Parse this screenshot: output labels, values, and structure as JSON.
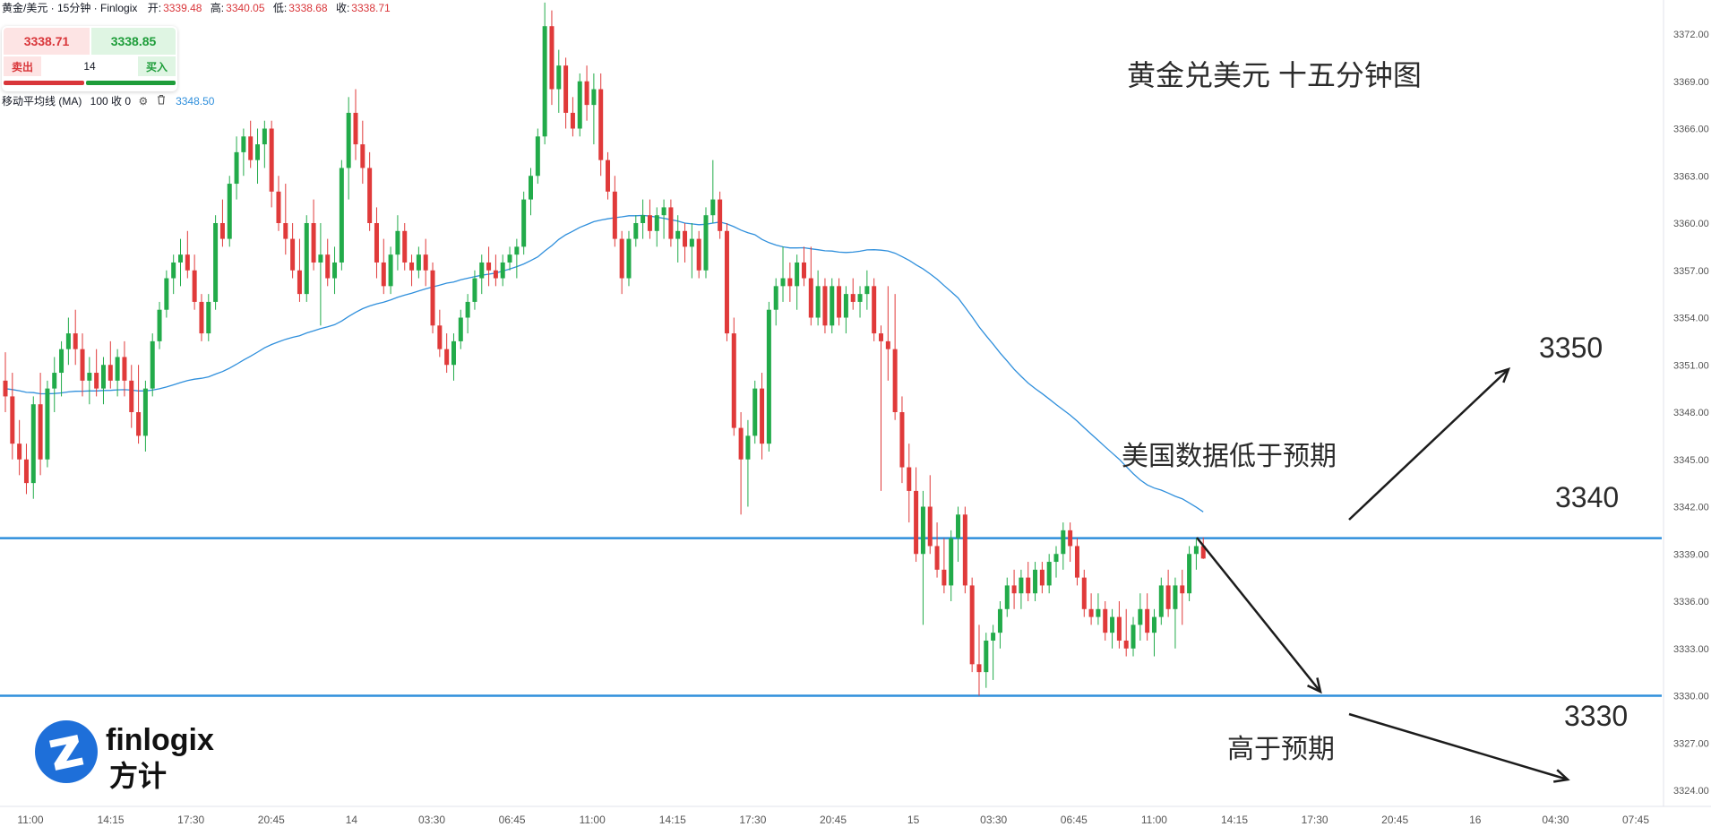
{
  "header": {
    "symbol": "黄金/美元 · 15分钟 · Finlogix",
    "open_label": "开:",
    "open": "3339.48",
    "high_label": "高:",
    "high": "3340.05",
    "low_label": "低:",
    "low": "3338.68",
    "close_label": "收:",
    "close": "3338.71"
  },
  "trade_panel": {
    "sell_price": "3338.71",
    "buy_price": "3338.85",
    "sell_label": "卖出",
    "buy_label": "买入",
    "quantity": "14"
  },
  "indicator": {
    "name": "移动平均线 (MA)",
    "params": "100 收 0",
    "value": "3348.50",
    "settings_icon": "gear-icon",
    "delete_icon": "trash-icon"
  },
  "annotations": {
    "title": "黄金兑美元 十五分钟图",
    "scenario_low": "美国数据低于预期",
    "scenario_high": "高于预期",
    "target_up": "3350",
    "level_upper": "3340",
    "level_lower": "3330"
  },
  "logo": {
    "brand": "finlogix",
    "brand_cn": "方计"
  },
  "colors": {
    "up": "#22ab4a",
    "down": "#e03a3a",
    "ma": "#2f8fdc",
    "level_line": "#2f8fdc",
    "arrow": "#1c1c1c",
    "logo_blue": "#1e6fd9"
  },
  "chart_data": {
    "type": "candlestick",
    "title": "黄金兑美元 十五分钟图",
    "ylim": [
      3322.5,
      3374.0
    ],
    "y_ticks": [
      "3372.00",
      "3369.00",
      "3366.00",
      "3363.00",
      "3360.00",
      "3357.00",
      "3354.00",
      "3351.00",
      "3348.00",
      "3345.00",
      "3342.00",
      "3339.00",
      "3336.00",
      "3333.00",
      "3330.00",
      "3327.00",
      "3324.00"
    ],
    "x_ticks": [
      "11:00",
      "14:15",
      "17:30",
      "20:45",
      "14",
      "03:30",
      "06:45",
      "11:00",
      "14:15",
      "17:30",
      "20:45",
      "15",
      "03:30",
      "06:45",
      "11:00",
      "14:15",
      "17:30",
      "20:45",
      "16",
      "04:30",
      "07:45"
    ],
    "horizontal_levels": [
      3340.0,
      3330.0
    ],
    "ma_period": 100,
    "ohlc_description": "open, high, low, close per 15-minute bar, approximated from the image",
    "ohlc": [
      [
        3350.0,
        3351.8,
        3348.0,
        3349.0
      ],
      [
        3349.0,
        3350.5,
        3345.0,
        3346.0
      ],
      [
        3346.0,
        3347.5,
        3344.0,
        3345.0
      ],
      [
        3345.0,
        3346.0,
        3342.8,
        3343.5
      ],
      [
        3343.5,
        3349.0,
        3342.5,
        3348.5
      ],
      [
        3348.5,
        3350.5,
        3344.0,
        3345.0
      ],
      [
        3345.0,
        3350.0,
        3344.5,
        3349.5
      ],
      [
        3349.5,
        3351.5,
        3348.0,
        3350.5
      ],
      [
        3350.5,
        3352.5,
        3349.0,
        3352.0
      ],
      [
        3352.0,
        3354.0,
        3351.0,
        3353.0
      ],
      [
        3353.0,
        3354.5,
        3351.0,
        3352.0
      ],
      [
        3352.0,
        3353.0,
        3349.0,
        3350.0
      ],
      [
        3350.0,
        3351.5,
        3348.5,
        3350.5
      ],
      [
        3350.5,
        3352.0,
        3349.0,
        3349.5
      ],
      [
        3349.5,
        3351.5,
        3348.5,
        3351.0
      ],
      [
        3351.0,
        3352.5,
        3349.5,
        3350.0
      ],
      [
        3350.0,
        3352.0,
        3349.0,
        3351.5
      ],
      [
        3351.5,
        3352.5,
        3349.0,
        3350.0
      ],
      [
        3350.0,
        3351.0,
        3347.0,
        3348.0
      ],
      [
        3348.0,
        3351.0,
        3346.0,
        3346.5
      ],
      [
        3346.5,
        3350.0,
        3345.5,
        3349.5
      ],
      [
        3349.5,
        3353.0,
        3349.0,
        3352.5
      ],
      [
        3352.5,
        3355.0,
        3352.0,
        3354.5
      ],
      [
        3354.5,
        3357.0,
        3354.0,
        3356.5
      ],
      [
        3356.5,
        3358.0,
        3355.5,
        3357.5
      ],
      [
        3357.5,
        3359.0,
        3356.0,
        3358.0
      ],
      [
        3358.0,
        3359.5,
        3356.5,
        3357.0
      ],
      [
        3357.0,
        3358.0,
        3354.5,
        3355.0
      ],
      [
        3355.0,
        3355.5,
        3352.5,
        3353.0
      ],
      [
        3353.0,
        3355.5,
        3352.5,
        3355.0
      ],
      [
        3355.0,
        3360.5,
        3354.5,
        3360.0
      ],
      [
        3360.0,
        3361.5,
        3358.5,
        3359.0
      ],
      [
        3359.0,
        3363.0,
        3358.5,
        3362.5
      ],
      [
        3362.5,
        3365.5,
        3361.5,
        3364.5
      ],
      [
        3364.5,
        3366.0,
        3363.0,
        3365.5
      ],
      [
        3365.5,
        3366.5,
        3363.5,
        3364.0
      ],
      [
        3364.0,
        3366.0,
        3362.5,
        3365.0
      ],
      [
        3365.0,
        3366.5,
        3363.5,
        3366.0
      ],
      [
        3366.0,
        3366.5,
        3361.0,
        3362.0
      ],
      [
        3362.0,
        3363.0,
        3359.5,
        3360.0
      ],
      [
        3360.0,
        3362.5,
        3358.0,
        3359.0
      ],
      [
        3359.0,
        3360.0,
        3356.5,
        3357.0
      ],
      [
        3357.0,
        3359.0,
        3355.0,
        3355.5
      ],
      [
        3355.5,
        3360.5,
        3355.0,
        3360.0
      ],
      [
        3360.0,
        3361.5,
        3357.0,
        3357.5
      ],
      [
        3357.5,
        3360.0,
        3353.5,
        3358.0
      ],
      [
        3358.0,
        3359.0,
        3356.0,
        3356.5
      ],
      [
        3356.5,
        3358.5,
        3355.5,
        3357.5
      ],
      [
        3357.5,
        3364.0,
        3357.0,
        3363.5
      ],
      [
        3363.5,
        3368.0,
        3361.5,
        3367.0
      ],
      [
        3367.0,
        3368.5,
        3364.0,
        3365.0
      ],
      [
        3365.0,
        3366.5,
        3362.5,
        3363.5
      ],
      [
        3363.5,
        3364.5,
        3359.5,
        3360.0
      ],
      [
        3360.0,
        3361.0,
        3356.5,
        3357.5
      ],
      [
        3357.5,
        3359.0,
        3355.5,
        3356.0
      ],
      [
        3356.0,
        3358.5,
        3355.5,
        3358.0
      ],
      [
        3358.0,
        3360.5,
        3357.0,
        3359.5
      ],
      [
        3359.5,
        3360.0,
        3357.0,
        3357.5
      ],
      [
        3357.5,
        3358.0,
        3356.0,
        3357.0
      ],
      [
        3357.0,
        3358.5,
        3356.5,
        3358.0
      ],
      [
        3358.0,
        3359.0,
        3356.0,
        3357.0
      ],
      [
        3357.0,
        3357.5,
        3353.0,
        3353.5
      ],
      [
        3353.5,
        3354.5,
        3351.5,
        3352.0
      ],
      [
        3352.0,
        3353.0,
        3350.5,
        3351.0
      ],
      [
        3351.0,
        3353.0,
        3350.0,
        3352.5
      ],
      [
        3352.5,
        3354.5,
        3352.0,
        3354.0
      ],
      [
        3354.0,
        3355.5,
        3353.0,
        3355.0
      ],
      [
        3355.0,
        3357.0,
        3354.5,
        3356.5
      ],
      [
        3356.5,
        3358.0,
        3355.5,
        3357.5
      ],
      [
        3357.5,
        3358.5,
        3356.0,
        3357.0
      ],
      [
        3357.0,
        3358.0,
        3356.0,
        3356.5
      ],
      [
        3356.5,
        3358.0,
        3356.0,
        3357.5
      ],
      [
        3357.5,
        3358.5,
        3357.0,
        3358.0
      ],
      [
        3358.0,
        3359.0,
        3356.5,
        3358.5
      ],
      [
        3358.5,
        3362.0,
        3358.0,
        3361.5
      ],
      [
        3361.5,
        3363.5,
        3360.5,
        3363.0
      ],
      [
        3363.0,
        3366.0,
        3362.5,
        3365.5
      ],
      [
        3365.5,
        3374.0,
        3365.0,
        3372.5
      ],
      [
        3372.5,
        3373.5,
        3367.5,
        3368.5
      ],
      [
        3368.5,
        3371.0,
        3367.0,
        3370.0
      ],
      [
        3370.0,
        3370.5,
        3366.0,
        3367.0
      ],
      [
        3367.0,
        3368.0,
        3365.5,
        3366.0
      ],
      [
        3366.0,
        3369.5,
        3365.5,
        3369.0
      ],
      [
        3369.0,
        3370.0,
        3366.5,
        3367.5
      ],
      [
        3367.5,
        3369.5,
        3365.0,
        3368.5
      ],
      [
        3368.5,
        3369.5,
        3363.0,
        3364.0
      ],
      [
        3364.0,
        3364.5,
        3361.5,
        3362.0
      ],
      [
        3362.0,
        3363.0,
        3358.5,
        3359.0
      ],
      [
        3359.0,
        3359.5,
        3355.5,
        3356.5
      ],
      [
        3356.5,
        3359.5,
        3356.0,
        3359.0
      ],
      [
        3359.0,
        3360.5,
        3358.5,
        3360.0
      ],
      [
        3360.0,
        3361.5,
        3359.0,
        3360.5
      ],
      [
        3360.5,
        3361.5,
        3359.0,
        3359.5
      ],
      [
        3359.5,
        3361.0,
        3358.5,
        3360.5
      ],
      [
        3360.5,
        3361.5,
        3359.0,
        3361.0
      ],
      [
        3361.0,
        3361.5,
        3358.5,
        3359.0
      ],
      [
        3359.0,
        3360.5,
        3357.5,
        3359.5
      ],
      [
        3359.5,
        3360.0,
        3357.5,
        3358.5
      ],
      [
        3358.5,
        3360.0,
        3356.5,
        3359.0
      ],
      [
        3359.0,
        3359.5,
        3356.5,
        3357.0
      ],
      [
        3357.0,
        3361.0,
        3356.5,
        3360.5
      ],
      [
        3360.5,
        3364.0,
        3360.0,
        3361.5
      ],
      [
        3361.5,
        3362.0,
        3359.0,
        3359.5
      ],
      [
        3359.5,
        3360.0,
        3352.5,
        3353.0
      ],
      [
        3353.0,
        3354.0,
        3346.5,
        3347.0
      ],
      [
        3347.0,
        3348.0,
        3341.5,
        3345.0
      ],
      [
        3345.0,
        3347.5,
        3342.0,
        3346.5
      ],
      [
        3346.5,
        3350.0,
        3346.0,
        3349.5
      ],
      [
        3349.5,
        3350.5,
        3345.0,
        3346.0
      ],
      [
        3346.0,
        3355.0,
        3345.5,
        3354.5
      ],
      [
        3354.5,
        3356.5,
        3353.5,
        3356.0
      ],
      [
        3356.0,
        3358.5,
        3355.0,
        3356.5
      ],
      [
        3356.5,
        3357.5,
        3355.0,
        3356.0
      ],
      [
        3356.0,
        3358.0,
        3354.5,
        3357.5
      ],
      [
        3357.5,
        3358.5,
        3356.0,
        3356.5
      ],
      [
        3356.5,
        3358.5,
        3353.5,
        3354.0
      ],
      [
        3354.0,
        3357.0,
        3353.5,
        3356.0
      ],
      [
        3356.0,
        3356.5,
        3353.0,
        3353.5
      ],
      [
        3353.5,
        3356.5,
        3353.0,
        3356.0
      ],
      [
        3356.0,
        3356.5,
        3353.5,
        3354.0
      ],
      [
        3354.0,
        3356.0,
        3353.0,
        3355.5
      ],
      [
        3355.5,
        3356.5,
        3354.5,
        3355.0
      ],
      [
        3355.0,
        3356.0,
        3354.0,
        3355.5
      ],
      [
        3355.5,
        3357.0,
        3354.5,
        3356.0
      ],
      [
        3356.0,
        3356.5,
        3352.5,
        3353.0
      ],
      [
        3353.0,
        3353.5,
        3343.0,
        3352.5
      ],
      [
        3352.5,
        3356.0,
        3350.0,
        3352.0
      ],
      [
        3352.0,
        3355.5,
        3347.5,
        3348.0
      ],
      [
        3348.0,
        3349.0,
        3343.5,
        3344.5
      ],
      [
        3344.5,
        3346.0,
        3341.0,
        3343.0
      ],
      [
        3343.0,
        3344.5,
        3338.5,
        3339.0
      ],
      [
        3339.0,
        3343.0,
        3334.5,
        3342.0
      ],
      [
        3342.0,
        3344.0,
        3339.0,
        3339.5
      ],
      [
        3339.5,
        3341.0,
        3337.5,
        3338.0
      ],
      [
        3338.0,
        3340.0,
        3336.5,
        3337.0
      ],
      [
        3337.0,
        3340.5,
        3336.0,
        3340.0
      ],
      [
        3340.0,
        3342.0,
        3338.5,
        3341.5
      ],
      [
        3341.5,
        3342.0,
        3336.5,
        3337.0
      ],
      [
        3337.0,
        3337.5,
        3331.5,
        3332.0
      ],
      [
        3332.0,
        3334.5,
        3330.0,
        3331.5
      ],
      [
        3331.5,
        3334.0,
        3330.5,
        3333.5
      ],
      [
        3333.5,
        3334.5,
        3331.0,
        3334.0
      ],
      [
        3334.0,
        3336.0,
        3333.0,
        3335.5
      ],
      [
        3335.5,
        3337.5,
        3335.0,
        3337.0
      ],
      [
        3337.0,
        3338.0,
        3335.5,
        3336.5
      ],
      [
        3336.5,
        3338.0,
        3335.5,
        3337.5
      ],
      [
        3337.5,
        3338.5,
        3336.0,
        3336.5
      ],
      [
        3336.5,
        3338.5,
        3336.0,
        3338.0
      ],
      [
        3338.0,
        3338.5,
        3336.5,
        3337.0
      ],
      [
        3337.0,
        3339.0,
        3336.5,
        3338.5
      ],
      [
        3338.5,
        3339.5,
        3337.5,
        3339.0
      ],
      [
        3339.0,
        3341.0,
        3338.0,
        3340.5
      ],
      [
        3340.5,
        3341.0,
        3338.5,
        3339.5
      ],
      [
        3339.5,
        3340.0,
        3337.0,
        3337.5
      ],
      [
        3337.5,
        3338.0,
        3335.0,
        3335.5
      ],
      [
        3335.5,
        3336.5,
        3334.5,
        3335.0
      ],
      [
        3335.0,
        3336.5,
        3334.5,
        3335.5
      ],
      [
        3335.5,
        3336.0,
        3333.5,
        3334.0
      ],
      [
        3334.0,
        3335.5,
        3333.0,
        3335.0
      ],
      [
        3335.0,
        3336.0,
        3333.0,
        3333.5
      ],
      [
        3333.5,
        3335.5,
        3332.5,
        3333.0
      ],
      [
        3333.0,
        3335.0,
        3332.5,
        3334.5
      ],
      [
        3334.5,
        3336.5,
        3333.5,
        3335.5
      ],
      [
        3335.5,
        3336.5,
        3333.5,
        3334.0
      ],
      [
        3334.0,
        3335.5,
        3332.5,
        3335.0
      ],
      [
        3335.0,
        3337.5,
        3334.5,
        3337.0
      ],
      [
        3337.0,
        3338.0,
        3335.0,
        3335.5
      ],
      [
        3335.5,
        3337.5,
        3333.0,
        3337.0
      ],
      [
        3337.0,
        3338.0,
        3334.5,
        3336.5
      ],
      [
        3336.5,
        3339.5,
        3336.0,
        3339.0
      ],
      [
        3339.0,
        3340.0,
        3338.0,
        3339.5
      ],
      [
        3339.5,
        3340.05,
        3338.68,
        3338.71
      ]
    ]
  }
}
